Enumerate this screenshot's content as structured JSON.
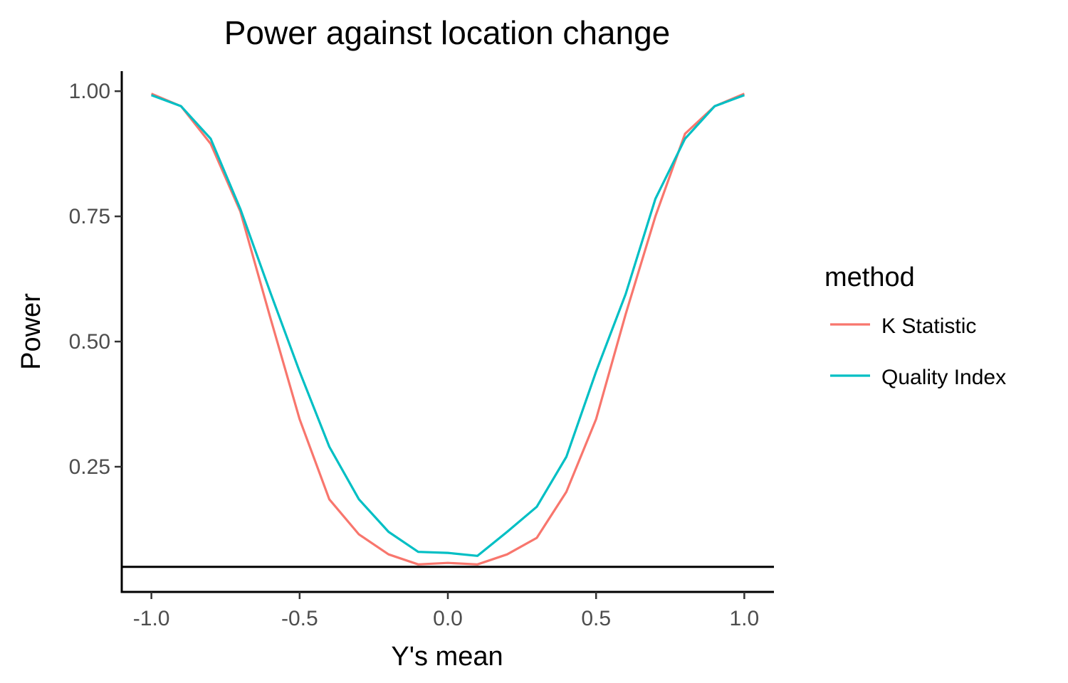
{
  "chart_data": {
    "type": "line",
    "title": "Power against location change",
    "xlabel": "Y's mean",
    "ylabel": "Power",
    "xlim": [
      -1.1,
      1.1
    ],
    "ylim": [
      0.0,
      1.04
    ],
    "x": [
      -1.0,
      -0.9,
      -0.8,
      -0.7,
      -0.6,
      -0.5,
      -0.4,
      -0.3,
      -0.2,
      -0.1,
      0.0,
      0.1,
      0.2,
      0.3,
      0.4,
      0.5,
      0.6,
      0.7,
      0.8,
      0.9,
      1.0
    ],
    "xticks": [
      "-1.0",
      "-0.5",
      "0.0",
      "0.5",
      "1.0"
    ],
    "xtick_values": [
      -1.0,
      -0.5,
      0.0,
      0.5,
      1.0
    ],
    "yticks": [
      "0.25",
      "0.50",
      "0.75",
      "1.00"
    ],
    "ytick_values": [
      0.25,
      0.5,
      0.75,
      1.0
    ],
    "reference_line": {
      "y": 0.05
    },
    "grid": false,
    "legend": {
      "title": "method",
      "position": "right"
    },
    "series": [
      {
        "name": "K Statistic",
        "color": "#F8766D",
        "values": [
          0.995,
          0.97,
          0.895,
          0.76,
          0.55,
          0.345,
          0.185,
          0.115,
          0.075,
          0.055,
          0.058,
          0.055,
          0.075,
          0.108,
          0.2,
          0.345,
          0.555,
          0.75,
          0.915,
          0.97,
          0.995
        ]
      },
      {
        "name": "Quality Index",
        "color": "#00BFC4",
        "values": [
          0.992,
          0.97,
          0.905,
          0.765,
          0.6,
          0.44,
          0.29,
          0.185,
          0.12,
          0.08,
          0.078,
          0.072,
          0.12,
          0.17,
          0.27,
          0.44,
          0.595,
          0.785,
          0.905,
          0.97,
          0.992
        ]
      }
    ]
  }
}
